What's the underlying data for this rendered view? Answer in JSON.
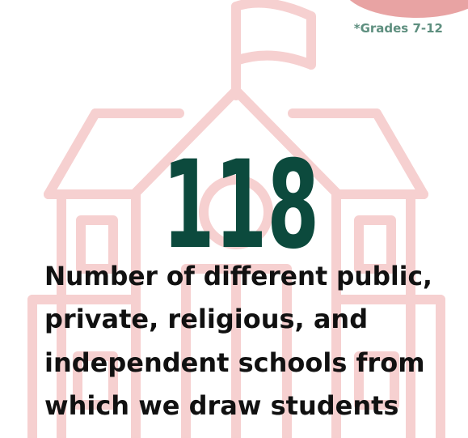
{
  "note": "*Grades 7-12",
  "stat": {
    "value": "118",
    "description_lines": [
      "Number of different public,",
      "private, religious, and",
      "independent schools from",
      "which we draw students"
    ]
  }
}
